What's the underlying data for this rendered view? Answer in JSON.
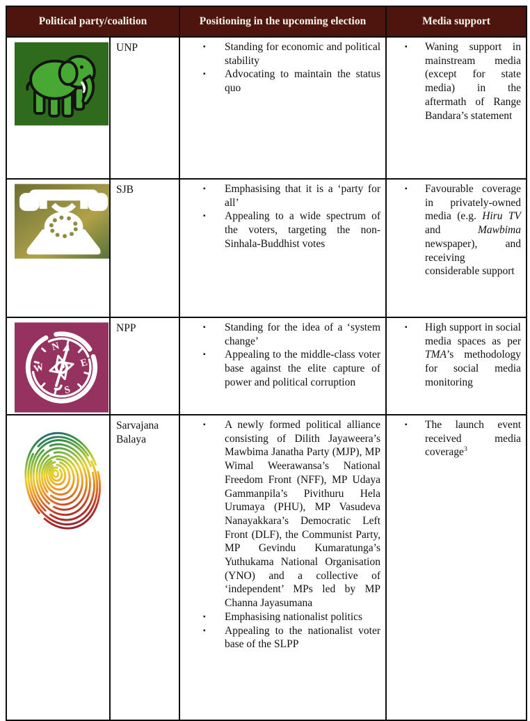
{
  "bullet_char": "▪",
  "header": {
    "col_party": "Political party/coalition",
    "col_positioning": "Positioning in the upcoming election",
    "col_media": "Media support"
  },
  "colors": {
    "header_bg": "#4E150E",
    "header_text": "#F8F4EC",
    "border": "#0D0D0D",
    "unp_logo_bg": "#2E6B1D",
    "unp_elephant_green": "#47A933",
    "sjb_logo_olive": "#7C8439",
    "sjb_logo_gold": "#B2A148",
    "sjb_logo_green": "#52713A",
    "sjb_phone": "#FFFFFF",
    "npp_logo_bg": "#96325F",
    "npp_compass": "#FFFFFF",
    "fingerprint_rainbow": [
      "#2B4FA0",
      "#2F8C4A",
      "#86B93B",
      "#E9D22E",
      "#EFA125",
      "#D96A28",
      "#B32F25",
      "#8E2430"
    ]
  },
  "rows": [
    {
      "party": "UNP",
      "logo": "unp-green-elephant-logo",
      "positioning": [
        [
          {
            "t": "Standing for economic and political stability"
          }
        ],
        [
          {
            "t": "Advocating to maintain the status quo"
          }
        ]
      ],
      "media": [
        [
          {
            "t": "Waning support in mainstream media (except for state media) in the aftermath of Range Bandara’s statement"
          }
        ]
      ]
    },
    {
      "party": "SJB",
      "logo": "sjb-telephone-logo",
      "positioning": [
        [
          {
            "t": "Emphasising that it is a ‘party for all’"
          }
        ],
        [
          {
            "t": "Appealing to a wide spectrum of the voters, targeting the non-Sinhala-Buddhist votes"
          }
        ]
      ],
      "media": [
        [
          {
            "t": "Favourable coverage in privately-owned media (e.g. "
          },
          {
            "t": "Hiru TV",
            "i": true
          },
          {
            "t": " and "
          },
          {
            "t": "Mawbima",
            "i": true
          },
          {
            "t": " newspaper), and receiving considerable support"
          }
        ]
      ]
    },
    {
      "party": "NPP",
      "logo": "npp-compass-logo",
      "positioning": [
        [
          {
            "t": "Standing for the idea of a ‘system change’"
          }
        ],
        [
          {
            "t": "Appealing to the middle-class voter base against the elite capture of power and political corruption"
          }
        ]
      ],
      "media": [
        [
          {
            "t": "High support in social media spaces as per "
          },
          {
            "t": "TMA",
            "i": true
          },
          {
            "t": "’s methodology for social media monitoring"
          }
        ]
      ]
    },
    {
      "party": "Sarvajana Balaya",
      "logo": "sarvajana-balaya-rainbow-fingerprint-logo",
      "positioning": [
        [
          {
            "t": "A newly formed political alliance consisting of Dilith Jayaweera’s Mawbima Janatha Party (MJP), MP Wimal Weerawansa’s National Freedom Front (NFF), MP Udaya Gammanpila’s Pivithuru Hela Urumaya (PHU), MP Vasudeva Nanayakkara’s Democratic Left Front (DLF), the Communist Party, MP Gevindu Kumaratunga’s Yuthukama National Organisation (YNO) and a collective of ‘independent’ MPs led by MP Channa Jayasumana"
          }
        ],
        [
          {
            "t": "Emphasising nationalist politics"
          }
        ],
        [
          {
            "t": "Appealing to the nationalist voter base of the SLPP"
          }
        ]
      ],
      "media": [
        [
          {
            "t": "The launch event received media coverage"
          },
          {
            "t": "3",
            "sup": true
          }
        ]
      ]
    }
  ]
}
